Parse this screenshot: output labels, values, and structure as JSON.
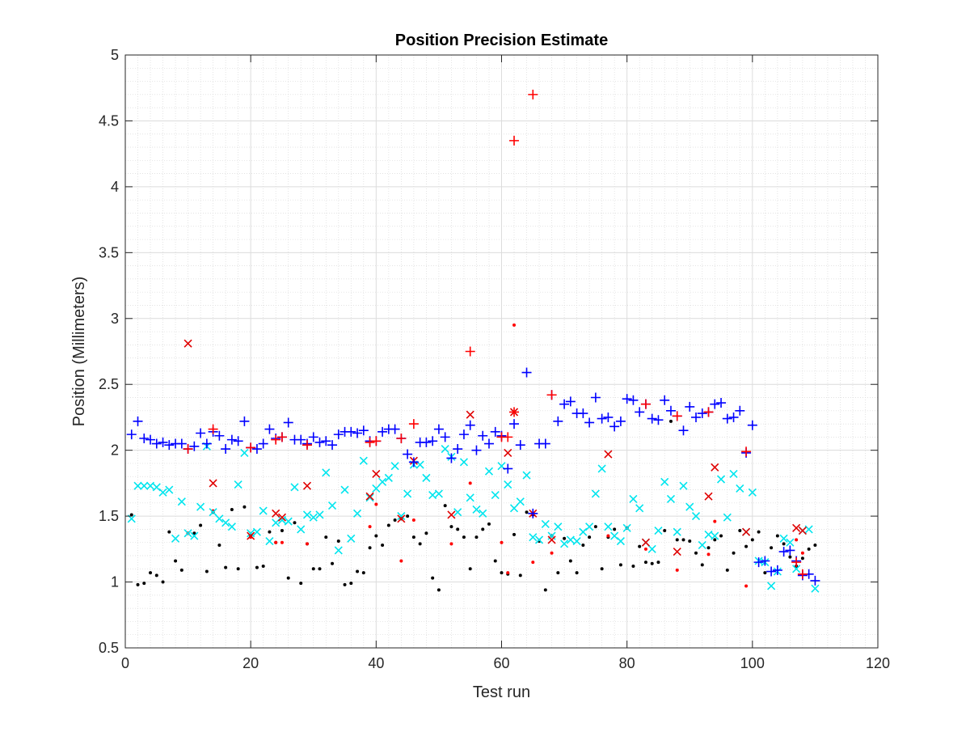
{
  "chart_data": {
    "type": "scatter",
    "title": "Position Precision Estimate",
    "xlabel": "Test run",
    "ylabel": "Position (Millimeters)",
    "xlim": [
      0,
      120
    ],
    "ylim": [
      0.5,
      5
    ],
    "xticks": [
      "0",
      "20",
      "40",
      "60",
      "80",
      "100",
      "120"
    ],
    "yticks": [
      "0.5",
      "1",
      "1.5",
      "2",
      "2.5",
      "3",
      "3.5",
      "4",
      "4.5",
      "5"
    ],
    "grid": "major and minor",
    "legend": "none",
    "series": [
      {
        "marker": "plus",
        "color": "#0000ff",
        "x": [
          1,
          2,
          3,
          4,
          5,
          6,
          7,
          8,
          9,
          10,
          11,
          12,
          13,
          14,
          15,
          16,
          17,
          18,
          19,
          20,
          21,
          22,
          23,
          24,
          25,
          26,
          27,
          28,
          29,
          30,
          31,
          32,
          33,
          34,
          35,
          36,
          37,
          38,
          39,
          40,
          41,
          42,
          43,
          44,
          45,
          46,
          47,
          48,
          49,
          50,
          51,
          52,
          53,
          54,
          55,
          56,
          57,
          58,
          59,
          60,
          61,
          62,
          63,
          64,
          65,
          66,
          67,
          68,
          69,
          70,
          71,
          72,
          73,
          74,
          75,
          76,
          77,
          78,
          79,
          80,
          81,
          82,
          83,
          84,
          85,
          86,
          87,
          88,
          89,
          90,
          91,
          92,
          93,
          94,
          95,
          96,
          97,
          98,
          99,
          100,
          101,
          102,
          103,
          104,
          105,
          106,
          107,
          108,
          109,
          110
        ],
        "y": [
          2.12,
          2.22,
          2.09,
          2.08,
          2.05,
          2.06,
          2.04,
          2.05,
          2.05,
          2.01,
          2.03,
          2.13,
          2.05,
          2.14,
          2.11,
          2.01,
          2.08,
          2.07,
          2.22,
          2.02,
          2.01,
          2.05,
          2.16,
          2.09,
          2.1,
          2.21,
          2.08,
          2.08,
          2.05,
          2.1,
          2.06,
          2.07,
          2.04,
          2.12,
          2.14,
          2.14,
          2.13,
          2.15,
          2.07,
          2.07,
          2.14,
          2.16,
          2.16,
          2.09,
          1.97,
          1.91,
          2.06,
          2.06,
          2.07,
          2.16,
          2.1,
          1.94,
          2.01,
          2.12,
          2.19,
          2.0,
          2.11,
          2.05,
          2.14,
          2.11,
          1.86,
          2.2,
          2.04,
          2.59,
          1.52,
          2.05,
          2.05,
          2.42,
          2.22,
          2.35,
          2.37,
          2.28,
          2.28,
          2.21,
          2.4,
          2.24,
          2.25,
          2.18,
          2.22,
          2.39,
          2.38,
          2.29,
          2.35,
          2.24,
          2.23,
          2.38,
          2.3,
          2.26,
          2.15,
          2.33,
          2.25,
          2.28,
          2.29,
          2.35,
          2.36,
          2.24,
          2.25,
          2.3,
          1.98,
          2.19,
          1.15,
          1.16,
          1.08,
          1.09,
          1.23,
          1.24,
          1.16,
          1.05,
          1.06,
          1.01
        ]
      },
      {
        "marker": "plus",
        "color": "#ff0000",
        "x": [
          10,
          14,
          20,
          24,
          25,
          29,
          39,
          40,
          44,
          46,
          55,
          60,
          61,
          62,
          62,
          65,
          68,
          83,
          88,
          93,
          99,
          107,
          108
        ],
        "y": [
          2.01,
          2.16,
          2.02,
          2.08,
          2.1,
          2.04,
          2.06,
          2.07,
          2.09,
          2.2,
          2.75,
          2.1,
          2.1,
          4.35,
          2.29,
          4.7,
          2.42,
          2.35,
          2.26,
          2.29,
          1.99,
          1.15,
          1.06
        ]
      },
      {
        "marker": "x",
        "color": "#00e5ee",
        "x": [
          1,
          2,
          3,
          4,
          5,
          6,
          7,
          8,
          9,
          10,
          11,
          12,
          13,
          14,
          15,
          16,
          17,
          18,
          19,
          20,
          21,
          22,
          23,
          24,
          25,
          26,
          27,
          28,
          29,
          30,
          31,
          32,
          33,
          34,
          35,
          36,
          37,
          38,
          39,
          40,
          41,
          42,
          43,
          44,
          45,
          46,
          47,
          48,
          49,
          50,
          51,
          52,
          53,
          54,
          55,
          56,
          57,
          58,
          59,
          60,
          61,
          62,
          63,
          64,
          65,
          66,
          67,
          68,
          69,
          70,
          71,
          72,
          73,
          74,
          75,
          76,
          77,
          78,
          79,
          80,
          81,
          82,
          83,
          84,
          85,
          86,
          87,
          88,
          89,
          90,
          91,
          92,
          93,
          94,
          95,
          96,
          97,
          98,
          99,
          100,
          101,
          102,
          103,
          104,
          105,
          106,
          107,
          108,
          109,
          110
        ],
        "y": [
          1.48,
          1.73,
          1.73,
          1.73,
          1.72,
          1.68,
          1.7,
          1.33,
          1.61,
          1.37,
          1.35,
          1.57,
          2.03,
          1.53,
          1.48,
          1.45,
          1.42,
          1.74,
          1.98,
          1.37,
          1.38,
          1.54,
          1.31,
          1.45,
          1.47,
          1.46,
          1.72,
          1.4,
          1.51,
          1.49,
          1.51,
          1.83,
          1.58,
          1.24,
          1.7,
          1.33,
          1.52,
          1.92,
          1.64,
          1.71,
          1.76,
          1.79,
          1.88,
          1.5,
          1.67,
          1.89,
          1.89,
          1.79,
          1.66,
          1.67,
          2.01,
          1.95,
          1.53,
          1.91,
          1.64,
          1.55,
          1.52,
          1.84,
          1.66,
          1.88,
          1.74,
          1.56,
          1.61,
          1.81,
          1.34,
          1.32,
          1.44,
          1.35,
          1.42,
          1.29,
          1.32,
          1.31,
          1.38,
          1.42,
          1.67,
          1.86,
          1.42,
          1.35,
          1.31,
          1.41,
          1.63,
          1.56,
          1.3,
          1.25,
          1.39,
          1.76,
          1.63,
          1.38,
          1.73,
          1.57,
          1.5,
          1.28,
          1.36,
          1.35,
          1.78,
          1.49,
          1.82,
          1.71,
          1.38,
          1.68,
          1.16,
          1.15,
          0.97,
          1.08,
          1.33,
          1.3,
          1.1,
          1.39,
          1.4,
          0.95
        ]
      },
      {
        "marker": "x",
        "color": "#e00000",
        "x": [
          10,
          14,
          20,
          24,
          25,
          29,
          39,
          40,
          44,
          46,
          52,
          55,
          61,
          62,
          65,
          68,
          77,
          83,
          88,
          93,
          94,
          99,
          107,
          108
        ],
        "y": [
          2.81,
          1.75,
          1.35,
          1.52,
          1.49,
          1.73,
          1.65,
          1.82,
          1.48,
          1.92,
          1.51,
          2.27,
          1.98,
          2.29,
          1.52,
          1.32,
          1.97,
          1.3,
          1.23,
          1.65,
          1.87,
          1.38,
          1.41,
          1.39
        ]
      },
      {
        "marker": "dot",
        "color": "#000000",
        "x": [
          1,
          2,
          3,
          4,
          5,
          6,
          7,
          8,
          9,
          10,
          11,
          12,
          13,
          14,
          15,
          16,
          17,
          18,
          19,
          20,
          21,
          22,
          23,
          24,
          25,
          26,
          27,
          28,
          29,
          30,
          31,
          32,
          33,
          34,
          35,
          36,
          37,
          38,
          39,
          40,
          41,
          42,
          43,
          44,
          45,
          46,
          47,
          48,
          49,
          50,
          51,
          52,
          53,
          54,
          55,
          56,
          57,
          58,
          59,
          60,
          61,
          62,
          63,
          64,
          65,
          66,
          67,
          68,
          69,
          70,
          71,
          72,
          73,
          74,
          75,
          76,
          77,
          78,
          79,
          80,
          81,
          82,
          83,
          84,
          85,
          86,
          87,
          88,
          89,
          90,
          91,
          92,
          93,
          94,
          95,
          96,
          97,
          98,
          99,
          100,
          101,
          102,
          103,
          104,
          105,
          106,
          107,
          108,
          109,
          110
        ],
        "y": [
          1.51,
          0.98,
          0.99,
          1.07,
          1.05,
          1.0,
          1.38,
          1.16,
          1.09,
          1.37,
          1.37,
          1.43,
          1.08,
          1.53,
          1.28,
          1.11,
          1.55,
          1.1,
          1.57,
          1.35,
          1.11,
          1.12,
          1.38,
          1.3,
          1.39,
          1.03,
          1.45,
          0.99,
          1.29,
          1.1,
          1.1,
          1.34,
          1.14,
          1.31,
          0.98,
          0.99,
          1.08,
          1.07,
          1.26,
          1.35,
          1.28,
          1.43,
          1.47,
          1.48,
          1.5,
          1.34,
          1.29,
          1.37,
          1.03,
          0.94,
          1.58,
          1.42,
          1.4,
          1.34,
          1.1,
          1.34,
          1.4,
          1.44,
          1.16,
          1.07,
          1.06,
          1.36,
          1.05,
          1.53,
          1.51,
          1.31,
          0.94,
          1.35,
          1.07,
          1.33,
          1.16,
          1.07,
          1.28,
          1.34,
          1.42,
          1.1,
          1.34,
          1.4,
          1.13,
          1.41,
          1.12,
          1.27,
          1.15,
          1.14,
          1.15,
          1.39,
          2.22,
          1.32,
          1.32,
          1.31,
          1.22,
          1.13,
          1.26,
          1.32,
          1.35,
          1.09,
          1.22,
          1.39,
          1.27,
          1.32,
          1.38,
          1.07,
          1.26,
          1.35,
          1.29,
          1.19,
          1.12,
          1.18,
          1.25,
          1.28
        ]
      },
      {
        "marker": "dot",
        "color": "#ff0000",
        "x": [
          10,
          14,
          20,
          24,
          25,
          29,
          39,
          40,
          44,
          46,
          52,
          55,
          60,
          61,
          62,
          65,
          68,
          77,
          83,
          88,
          93,
          94,
          99,
          107,
          108
        ],
        "y": [
          1.37,
          1.54,
          1.34,
          1.3,
          1.3,
          1.29,
          1.42,
          1.59,
          1.16,
          1.47,
          1.29,
          1.75,
          1.3,
          1.07,
          2.95,
          1.15,
          1.22,
          1.35,
          1.25,
          1.09,
          1.21,
          1.46,
          0.97,
          1.32,
          1.22
        ]
      }
    ]
  }
}
